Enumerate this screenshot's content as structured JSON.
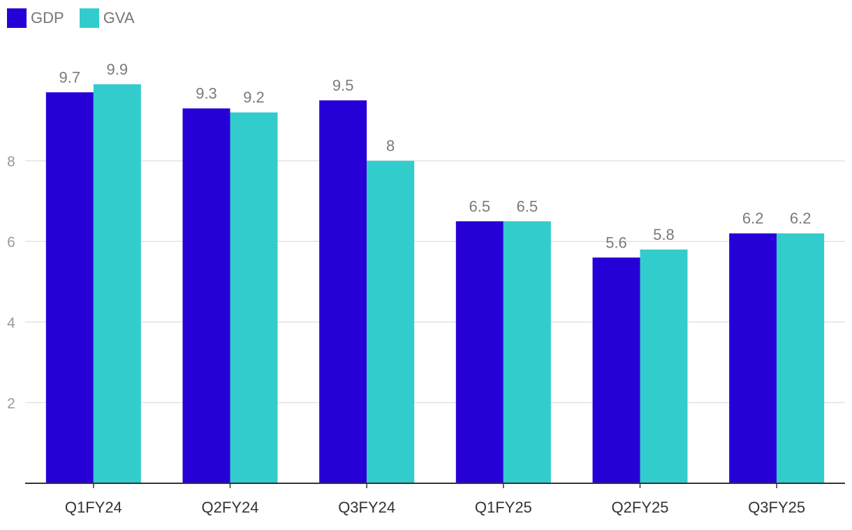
{
  "chart_data": {
    "type": "bar",
    "title": "",
    "xlabel": "",
    "ylabel": "",
    "categories": [
      "Q1FY24",
      "Q2FY24",
      "Q3FY24",
      "Q1FY25",
      "Q2FY25",
      "Q3FY25"
    ],
    "series": [
      {
        "name": "GDP",
        "color": "#2600d6",
        "values": [
          9.7,
          9.3,
          9.5,
          6.5,
          5.6,
          6.2
        ],
        "labels": [
          "9.7",
          "9.3",
          "9.5",
          "6.5",
          "5.6",
          "6.2"
        ]
      },
      {
        "name": "GVA",
        "color": "#33cccc",
        "values": [
          9.9,
          9.2,
          8,
          6.5,
          5.8,
          6.2
        ],
        "labels": [
          "9.9",
          "9.2",
          "8",
          "6.5",
          "5.8",
          "6.2"
        ]
      }
    ],
    "yticks": [
      2,
      4,
      6,
      8
    ],
    "ytick_labels": [
      "2",
      "4",
      "6",
      "8"
    ],
    "ylim": [
      0,
      10.5
    ],
    "grid": true,
    "legend_position": "top-left"
  }
}
